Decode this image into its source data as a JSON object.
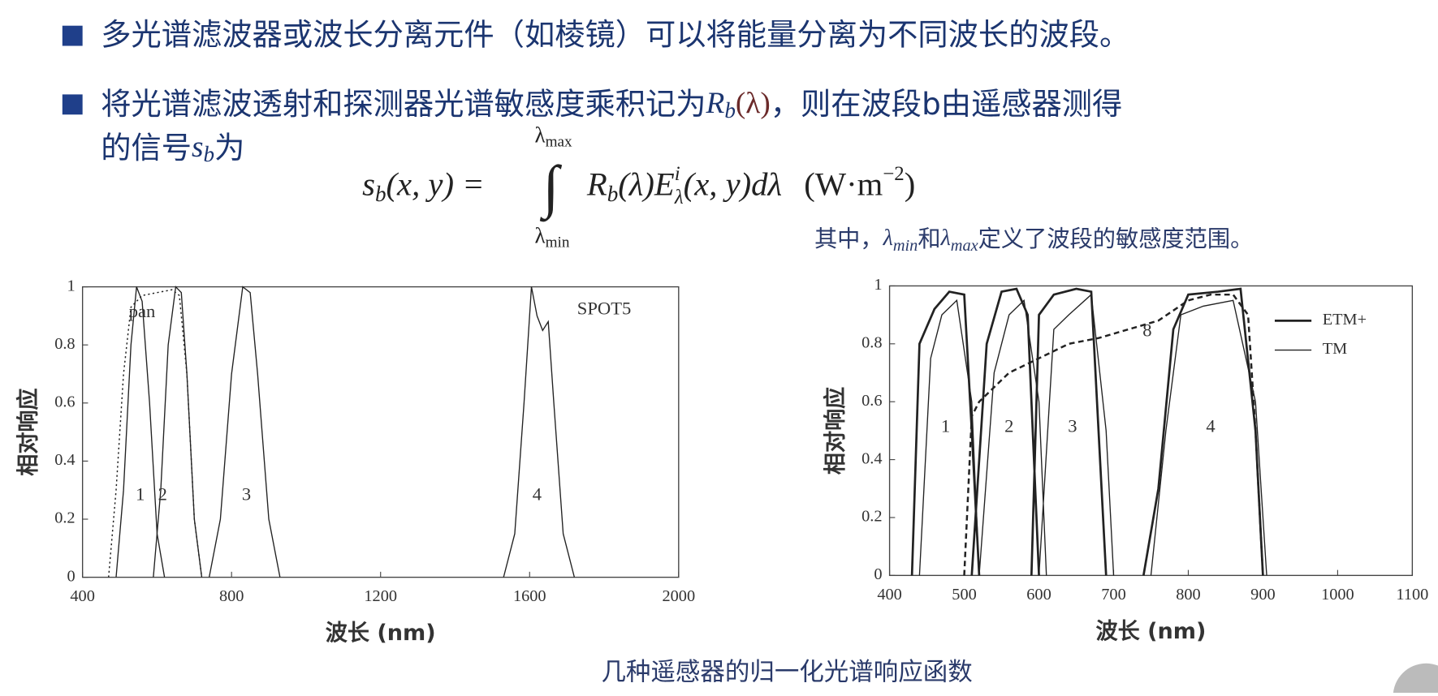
{
  "bullets": [
    {
      "text": "多光谱滤波器或波长分离元件（如棱镜）可以将能量分离为不同波长的波段。"
    },
    {
      "line1_a": "将光谱滤波透射和探测器光谱敏感度乘积记为",
      "line1_sym": "R",
      "line1_sub": "b",
      "line1_arg": "(λ)",
      "line1_b": "，则在波段b由遥感器测得",
      "line2_a": "的信号",
      "line2_sym": "s",
      "line2_sub": "b",
      "line2_b": "为"
    }
  ],
  "formula": {
    "lhs": "s",
    "lhs_sub": "b",
    "lhs_rest": "(x, y)  =",
    "integral": "∫",
    "upper": "λ",
    "upper_sub": "max",
    "lower": "λ",
    "lower_sub": "min",
    "body_a": "R",
    "body_sub": "b",
    "body_b": "(λ)E",
    "body_sup": "i",
    "body_sub2": "λ",
    "body_c": "(x, y)dλ",
    "unit_a": "(W·m",
    "unit_sup": "−2",
    "unit_b": ")"
  },
  "note": {
    "a": "其中，",
    "s1": "λ",
    "s1_sub": "min",
    "b": "和",
    "s2": "λ",
    "s2_sub": "max",
    "c": "定义了波段的敏感度范围。"
  },
  "caption": "几种遥感器的归一化光谱响应函数",
  "figures": [
    {
      "type": "line",
      "xlabel": "波长 (nm)",
      "ylabel": "相对响应",
      "xlim": [
        400,
        2000
      ],
      "ylim": [
        0,
        1
      ],
      "xticks": [
        400,
        800,
        1200,
        1600,
        2000
      ],
      "yticks": [
        0,
        0.2,
        0.4,
        0.6,
        0.8,
        1
      ],
      "series": [
        {
          "style": "dotted",
          "x": [
            470,
            490,
            510,
            530,
            560,
            600,
            640,
            660,
            680,
            700,
            720
          ],
          "values": [
            0,
            0.3,
            0.7,
            0.93,
            0.97,
            0.98,
            0.99,
            0.97,
            0.7,
            0.2,
            0
          ]
        },
        {
          "style": "solid",
          "x": [
            490,
            510,
            530,
            545,
            560,
            580,
            600,
            620
          ],
          "values": [
            0,
            0.3,
            0.8,
            1,
            0.95,
            0.6,
            0.15,
            0
          ]
        },
        {
          "style": "solid",
          "x": [
            590,
            610,
            630,
            650,
            665,
            680,
            700,
            720
          ],
          "values": [
            0,
            0.3,
            0.8,
            1,
            0.98,
            0.7,
            0.2,
            0
          ]
        },
        {
          "style": "solid",
          "x": [
            740,
            770,
            800,
            830,
            850,
            870,
            900,
            930
          ],
          "values": [
            0,
            0.2,
            0.7,
            1,
            0.98,
            0.7,
            0.2,
            0
          ]
        },
        {
          "style": "solid",
          "x": [
            1530,
            1560,
            1585,
            1605,
            1620,
            1635,
            1650,
            1665,
            1690,
            1720
          ],
          "values": [
            0,
            0.15,
            0.6,
            1,
            0.9,
            0.85,
            0.88,
            0.6,
            0.15,
            0
          ]
        }
      ],
      "annotations": [
        {
          "text": "pan",
          "x": 560,
          "y": 0.91
        },
        {
          "text": "SPOT5",
          "x": 1800,
          "y": 0.92
        },
        {
          "text": "1",
          "x": 555,
          "y": 0.28
        },
        {
          "text": "2",
          "x": 615,
          "y": 0.28
        },
        {
          "text": "3",
          "x": 840,
          "y": 0.28
        },
        {
          "text": "4",
          "x": 1620,
          "y": 0.28
        }
      ]
    },
    {
      "type": "line",
      "xlabel": "波长 (nm)",
      "ylabel": "相对响应",
      "legend": "top-right",
      "xlim": [
        400,
        1100
      ],
      "ylim": [
        0,
        1
      ],
      "xticks": [
        400,
        500,
        600,
        700,
        800,
        900,
        1000,
        1100
      ],
      "yticks": [
        0,
        0.2,
        0.4,
        0.6,
        0.8,
        1
      ],
      "series": [
        {
          "name": "ETM+",
          "style": "solid-thick",
          "x": [
            430,
            440,
            460,
            480,
            500,
            510,
            520,
            515,
            510,
            530,
            550,
            570,
            585,
            600,
            595,
            590,
            600,
            620,
            650,
            670,
            690,
            715,
            740,
            760,
            780,
            800,
            840,
            870,
            890,
            900
          ],
          "values": [
            0,
            0.8,
            0.92,
            0.98,
            0.97,
            0.5,
            0,
            null,
            0,
            0.8,
            0.98,
            0.99,
            0.9,
            0,
            null,
            0,
            0.9,
            0.97,
            0.99,
            0.98,
            0,
            null,
            0,
            0.3,
            0.85,
            0.97,
            0.98,
            0.99,
            0.5,
            0
          ]
        },
        {
          "name": "TM",
          "style": "solid",
          "x": [
            440,
            455,
            470,
            490,
            510,
            520,
            520,
            520,
            540,
            560,
            580,
            600,
            610,
            605,
            600,
            620,
            640,
            670,
            690,
            700,
            725,
            750,
            770,
            790,
            820,
            860,
            890,
            905
          ],
          "values": [
            0,
            0.75,
            0.9,
            0.95,
            0.6,
            0,
            null,
            0,
            0.7,
            0.9,
            0.95,
            0.6,
            0,
            null,
            0,
            0.85,
            0.9,
            0.97,
            0.5,
            0,
            null,
            0,
            0.5,
            0.9,
            0.93,
            0.95,
            0.6,
            0
          ]
        },
        {
          "style": "dashed",
          "x": [
            500,
            510,
            520,
            560,
            600,
            640,
            680,
            720,
            760,
            800,
            830,
            860,
            880,
            890,
            900
          ],
          "values": [
            0,
            0.55,
            0.6,
            0.7,
            0.75,
            0.8,
            0.82,
            0.85,
            0.88,
            0.95,
            0.97,
            0.97,
            0.9,
            0.5,
            0
          ]
        }
      ],
      "annotations": [
        {
          "text": "1",
          "x": 475,
          "y": 0.51
        },
        {
          "text": "2",
          "x": 560,
          "y": 0.51
        },
        {
          "text": "3",
          "x": 645,
          "y": 0.51
        },
        {
          "text": "4",
          "x": 830,
          "y": 0.51
        },
        {
          "text": "8",
          "x": 745,
          "y": 0.84
        }
      ]
    }
  ]
}
